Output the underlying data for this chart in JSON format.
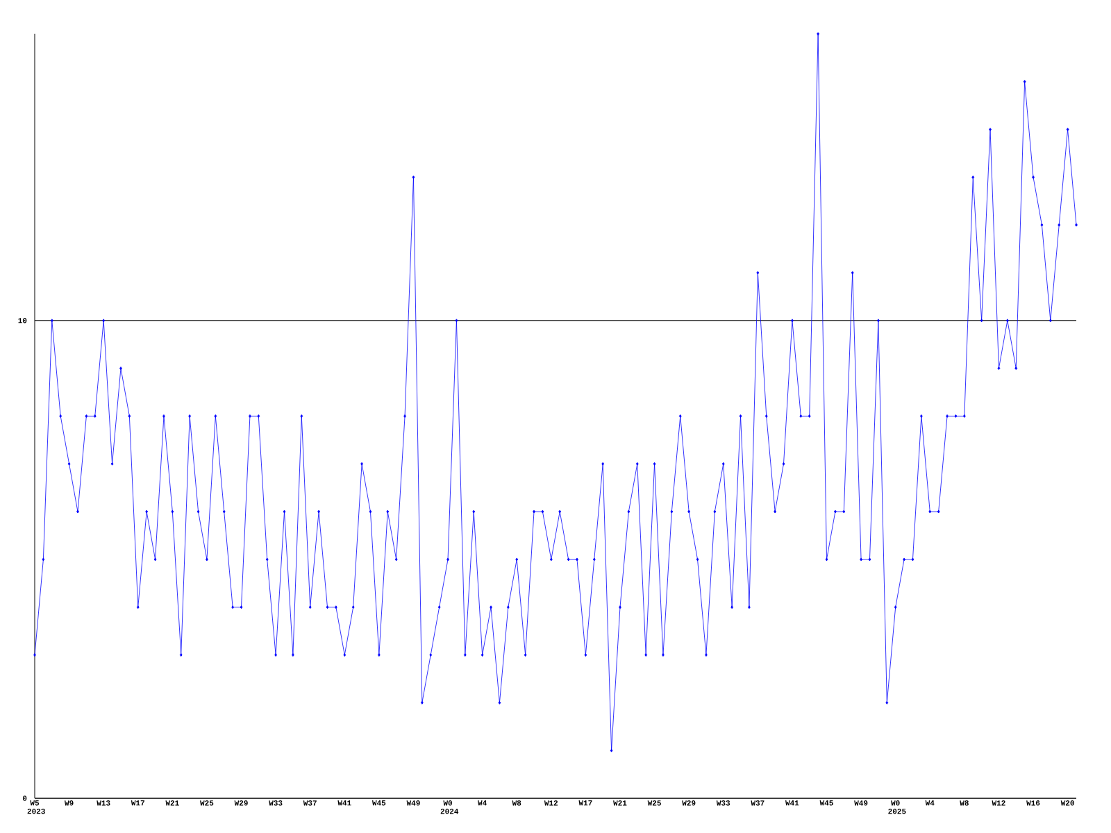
{
  "chart_data": {
    "type": "line",
    "categories": [
      "W5 2023",
      null,
      null,
      null,
      "W9",
      null,
      null,
      null,
      "W13",
      null,
      null,
      null,
      "W17",
      null,
      null,
      null,
      "W21",
      null,
      null,
      null,
      "W25",
      null,
      null,
      null,
      "W29",
      null,
      null,
      null,
      "W33",
      null,
      null,
      null,
      "W37",
      null,
      null,
      null,
      "W41",
      null,
      null,
      null,
      "W45",
      null,
      null,
      null,
      "W49",
      null,
      null,
      null,
      "W0 2024",
      null,
      null,
      null,
      "W4",
      null,
      null,
      null,
      "W8",
      null,
      null,
      null,
      "W12",
      null,
      null,
      null,
      "W17",
      null,
      null,
      null,
      "W21",
      null,
      null,
      null,
      "W25",
      null,
      null,
      null,
      "W29",
      null,
      null,
      null,
      "W33",
      null,
      null,
      null,
      "W37",
      null,
      null,
      null,
      "W41",
      null,
      null,
      null,
      "W45",
      null,
      null,
      null,
      "W49",
      null,
      null,
      null,
      "W0 2025",
      null,
      null,
      null,
      "W4",
      null,
      null,
      null,
      "W8",
      null,
      null,
      null,
      "W12",
      null,
      null,
      null,
      "W16",
      null,
      null,
      null,
      "W20",
      null
    ],
    "values": [
      3,
      5,
      10,
      8,
      7,
      6,
      8,
      8,
      10,
      7,
      9,
      8,
      4,
      6,
      5,
      8,
      6,
      3,
      8,
      6,
      5,
      8,
      6,
      4,
      4,
      8,
      8,
      5,
      3,
      6,
      3,
      8,
      4,
      6,
      4,
      4,
      3,
      4,
      7,
      6,
      3,
      6,
      5,
      8,
      13,
      2,
      3,
      4,
      5,
      10,
      3,
      6,
      3,
      4,
      2,
      4,
      5,
      3,
      6,
      6,
      5,
      6,
      5,
      5,
      3,
      5,
      7,
      1,
      4,
      6,
      7,
      3,
      7,
      3,
      6,
      8,
      6,
      5,
      3,
      6,
      7,
      4,
      8,
      4,
      11,
      8,
      6,
      7,
      10,
      8,
      8,
      16,
      5,
      6,
      6,
      11,
      5,
      5,
      10,
      2,
      4,
      5,
      5,
      8,
      6,
      6,
      8,
      8,
      8,
      13,
      10,
      14,
      9,
      10,
      9,
      15,
      13,
      12,
      10,
      12,
      14,
      12
    ],
    "color": "#0000ff",
    "marker": "diamond",
    "line_style": "solid",
    "ylim": [
      0,
      16
    ],
    "yticks": [
      0,
      10
    ],
    "grid": "y"
  }
}
